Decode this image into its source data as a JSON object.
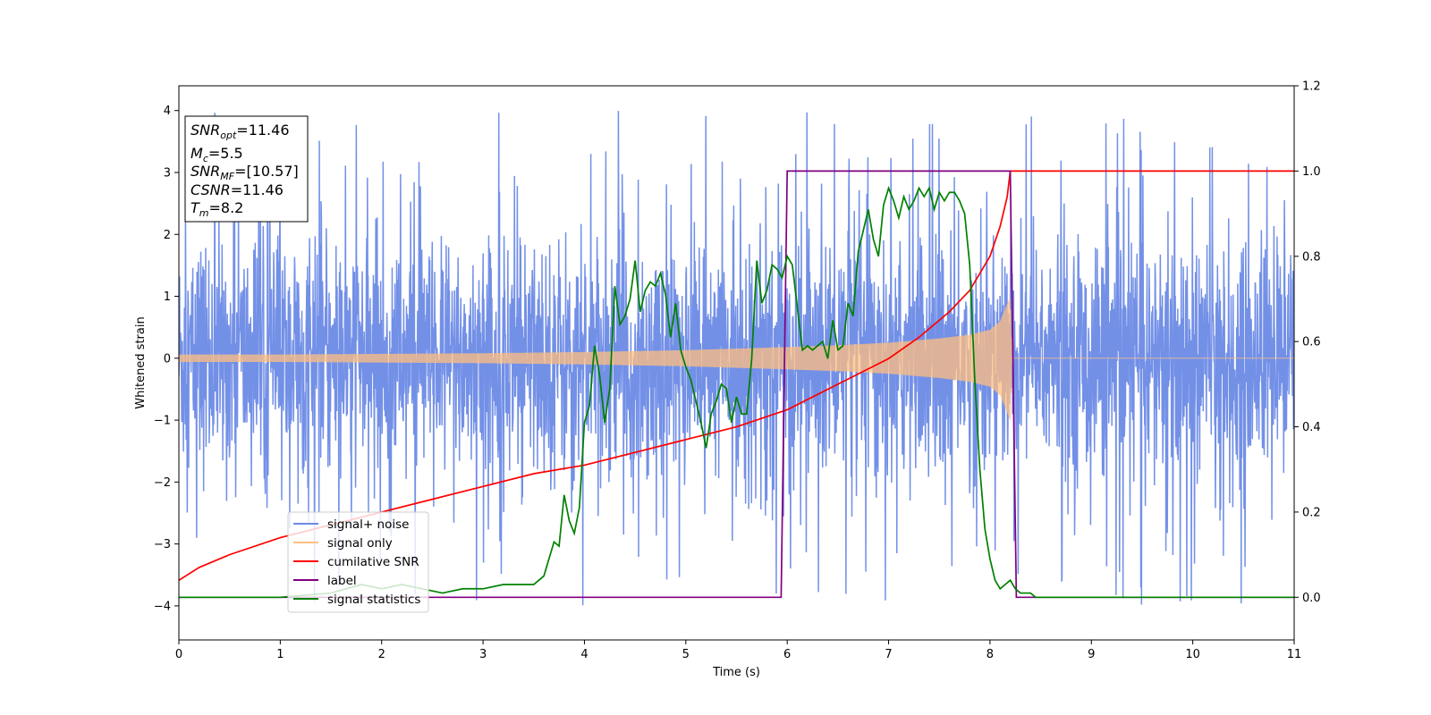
{
  "chart_data": {
    "type": "line",
    "xlabel": "Time (s)",
    "ylabel": "Whitened strain",
    "xlim": [
      0,
      11
    ],
    "ylim": [
      -4.55,
      4.4
    ],
    "y2lim": [
      -0.1,
      1.2
    ],
    "x_ticks": [
      0,
      1,
      2,
      3,
      4,
      5,
      6,
      7,
      8,
      9,
      10,
      11
    ],
    "y_ticks": [
      -4,
      -3,
      -2,
      -1,
      0,
      1,
      2,
      3,
      4
    ],
    "y2_ticks": [
      0.0,
      0.2,
      0.4,
      0.6,
      0.8,
      1.0,
      1.2
    ],
    "grid": false,
    "legend_position": "lower-left",
    "legend": [
      {
        "label": "signal+ noise",
        "color": "#6b8ae6"
      },
      {
        "label": "signal only",
        "color": "#ffbf80"
      },
      {
        "label": "cumilative SNR",
        "color": "#ff0000"
      },
      {
        "label": "label",
        "color": "#800080"
      },
      {
        "label": "signal statistics",
        "color": "#008000"
      }
    ],
    "info_box": [
      {
        "sym": "SNR",
        "sub": "opt",
        "rest": "=11.46"
      },
      {
        "sym": "M",
        "sub": "c",
        "rest": "=5.5"
      },
      {
        "sym": "SNR",
        "sub": "MF",
        "rest": "=[10.57]"
      },
      {
        "sym": "CSNR",
        "sub": "",
        "rest": "=11.46"
      },
      {
        "sym": "T",
        "sub": "m",
        "rest": "=8.2"
      }
    ],
    "series": [
      {
        "name": "signal+ noise",
        "axis": "left",
        "color": "#6b8ae6",
        "kind": "noise",
        "x_range": [
          0,
          11
        ],
        "band_amplitude": 1.6,
        "peak_amplitude": 4.0
      },
      {
        "name": "signal only",
        "axis": "left",
        "color": "#ffbf80",
        "kind": "chirp_envelope",
        "x": [
          0,
          1,
          2,
          3,
          4,
          5,
          6,
          6.5,
          7,
          7.5,
          7.8,
          8.0,
          8.1,
          8.2,
          8.22,
          11
        ],
        "envelope": [
          0.06,
          0.06,
          0.07,
          0.08,
          0.1,
          0.13,
          0.18,
          0.21,
          0.25,
          0.32,
          0.38,
          0.46,
          0.6,
          1.0,
          0.0,
          0.0
        ]
      },
      {
        "name": "cumilative SNR",
        "axis": "right",
        "color": "#ff0000",
        "x": [
          0,
          0.2,
          0.5,
          1,
          1.5,
          2,
          2.5,
          3,
          3.5,
          4,
          4.5,
          5,
          5.5,
          6,
          6.5,
          7,
          7.3,
          7.6,
          7.8,
          8.0,
          8.1,
          8.17,
          8.2,
          8.5,
          9,
          10,
          11
        ],
        "values": [
          0.04,
          0.07,
          0.1,
          0.14,
          0.17,
          0.2,
          0.23,
          0.26,
          0.29,
          0.31,
          0.34,
          0.37,
          0.4,
          0.44,
          0.5,
          0.56,
          0.61,
          0.67,
          0.72,
          0.8,
          0.87,
          0.94,
          1.0,
          1.0,
          1.0,
          1.0,
          1.0
        ]
      },
      {
        "name": "label",
        "axis": "right",
        "color": "#800080",
        "x": [
          0,
          5.94,
          6.0,
          8.2,
          8.26,
          11
        ],
        "values": [
          0.0,
          0.0,
          1.0,
          1.0,
          0.0,
          0.0
        ]
      },
      {
        "name": "signal statistics",
        "axis": "right",
        "color": "#008000",
        "x": [
          0,
          1,
          1.5,
          1.8,
          2.0,
          2.2,
          2.4,
          2.6,
          2.8,
          3.0,
          3.2,
          3.4,
          3.5,
          3.6,
          3.7,
          3.75,
          3.8,
          3.85,
          3.9,
          3.95,
          4.0,
          4.05,
          4.1,
          4.15,
          4.2,
          4.25,
          4.3,
          4.35,
          4.4,
          4.45,
          4.5,
          4.55,
          4.6,
          4.65,
          4.7,
          4.75,
          4.8,
          4.85,
          4.9,
          4.95,
          5.0,
          5.05,
          5.1,
          5.15,
          5.2,
          5.25,
          5.3,
          5.35,
          5.4,
          5.45,
          5.5,
          5.55,
          5.6,
          5.65,
          5.7,
          5.75,
          5.8,
          5.85,
          5.9,
          5.95,
          6.0,
          6.05,
          6.1,
          6.15,
          6.2,
          6.25,
          6.3,
          6.35,
          6.4,
          6.45,
          6.5,
          6.55,
          6.6,
          6.65,
          6.7,
          6.75,
          6.8,
          6.85,
          6.9,
          6.95,
          7.0,
          7.05,
          7.1,
          7.15,
          7.2,
          7.25,
          7.3,
          7.35,
          7.4,
          7.45,
          7.5,
          7.55,
          7.6,
          7.65,
          7.7,
          7.75,
          7.8,
          7.85,
          7.9,
          7.95,
          8.0,
          8.05,
          8.1,
          8.15,
          8.2,
          8.25,
          8.3,
          8.35,
          8.4,
          8.45,
          8.5,
          8.6,
          8.7,
          8.8,
          9,
          10,
          11
        ],
        "values": [
          0.0,
          0.0,
          0.01,
          0.03,
          0.02,
          0.03,
          0.02,
          0.01,
          0.02,
          0.02,
          0.03,
          0.03,
          0.03,
          0.05,
          0.13,
          0.12,
          0.24,
          0.18,
          0.15,
          0.21,
          0.41,
          0.45,
          0.59,
          0.52,
          0.41,
          0.49,
          0.73,
          0.64,
          0.66,
          0.7,
          0.79,
          0.67,
          0.72,
          0.74,
          0.73,
          0.76,
          0.71,
          0.61,
          0.69,
          0.58,
          0.54,
          0.51,
          0.46,
          0.41,
          0.35,
          0.43,
          0.46,
          0.5,
          0.49,
          0.41,
          0.47,
          0.43,
          0.43,
          0.56,
          0.79,
          0.69,
          0.72,
          0.78,
          0.77,
          0.75,
          0.8,
          0.78,
          0.68,
          0.58,
          0.59,
          0.58,
          0.59,
          0.6,
          0.56,
          0.65,
          0.58,
          0.59,
          0.69,
          0.66,
          0.81,
          0.86,
          0.91,
          0.84,
          0.8,
          0.92,
          0.96,
          0.93,
          0.89,
          0.94,
          0.91,
          0.93,
          0.96,
          0.94,
          0.96,
          0.91,
          0.95,
          0.93,
          0.95,
          0.95,
          0.93,
          0.9,
          0.78,
          0.51,
          0.3,
          0.16,
          0.09,
          0.04,
          0.02,
          0.03,
          0.04,
          0.02,
          0.01,
          0.01,
          0.01,
          0.0,
          0.0,
          0.0,
          0.0,
          0.0,
          0.0,
          0.0,
          0.0
        ]
      }
    ]
  }
}
